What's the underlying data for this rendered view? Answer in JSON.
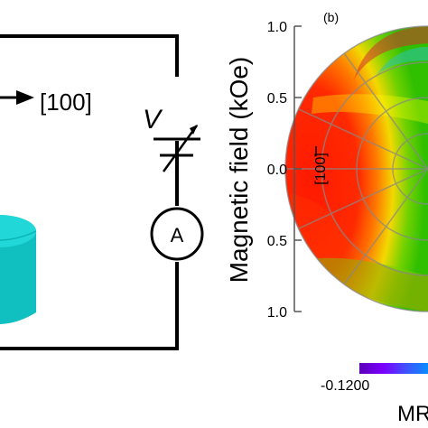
{
  "circuit": {
    "direction_label": "[100]",
    "voltage_symbol": "V",
    "ammeter_symbol": "A",
    "sample_color": "#13c4c4"
  },
  "polar_plot": {
    "panel_label": "(b)",
    "axis_label": "Magnetic field (kOe)",
    "ticks": [
      "1.0",
      "0.5",
      "0.0",
      "0.5",
      "1.0"
    ],
    "direction_label": "[100]",
    "colorbar_min_label": "-0.1200",
    "colorbar_title": "MR"
  }
}
